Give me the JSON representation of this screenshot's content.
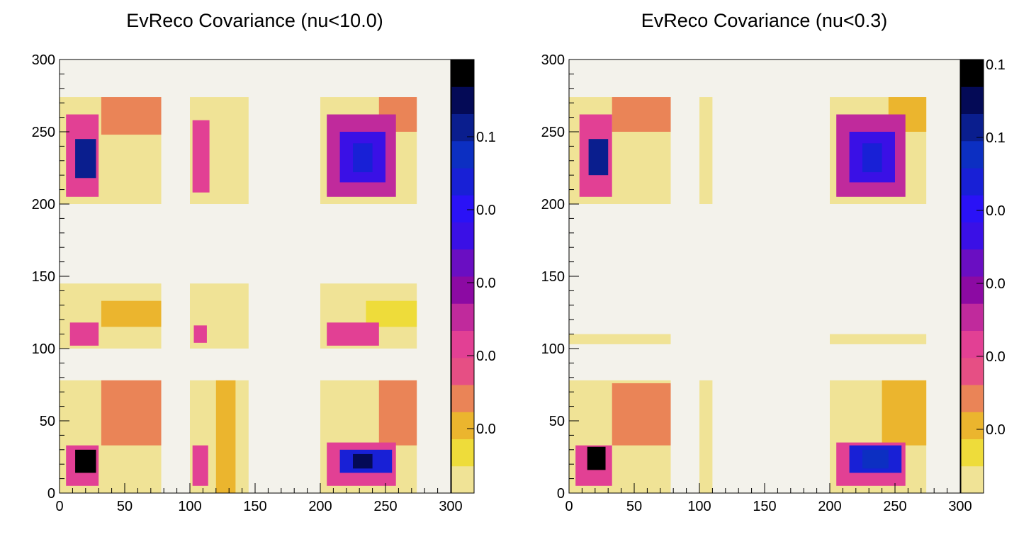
{
  "chart_data": [
    {
      "type": "heatmap",
      "title": "EvReco Covariance (nu<10.0)",
      "xlim": [
        0,
        300
      ],
      "ylim": [
        0,
        300
      ],
      "x_ticks": [
        "0",
        "50",
        "100",
        "150",
        "200",
        "250",
        "300"
      ],
      "y_ticks": [
        "0",
        "50",
        "100",
        "150",
        "200",
        "250",
        "300"
      ],
      "colorbar_labels": [
        "0.0",
        "0.0",
        "0.0",
        "0.0",
        "0.1"
      ],
      "background_color": "#f3f2eb",
      "regions": [
        {
          "x": [
            0,
            78
          ],
          "y": [
            0,
            78
          ],
          "level": 0.01
        },
        {
          "x": [
            0,
            78
          ],
          "y": [
            100,
            145
          ],
          "level": 0.01
        },
        {
          "x": [
            0,
            78
          ],
          "y": [
            200,
            274
          ],
          "level": 0.01
        },
        {
          "x": [
            100,
            145
          ],
          "y": [
            0,
            78
          ],
          "level": 0.01
        },
        {
          "x": [
            100,
            145
          ],
          "y": [
            100,
            145
          ],
          "level": 0.01
        },
        {
          "x": [
            100,
            145
          ],
          "y": [
            200,
            274
          ],
          "level": 0.01
        },
        {
          "x": [
            200,
            274
          ],
          "y": [
            0,
            78
          ],
          "level": 0.01
        },
        {
          "x": [
            200,
            274
          ],
          "y": [
            100,
            145
          ],
          "level": 0.01
        },
        {
          "x": [
            200,
            274
          ],
          "y": [
            200,
            274
          ],
          "level": 0.01
        },
        {
          "x": [
            32,
            78
          ],
          "y": [
            33,
            78
          ],
          "level": 0.2
        },
        {
          "x": [
            32,
            78
          ],
          "y": [
            115,
            133
          ],
          "level": 0.12
        },
        {
          "x": [
            32,
            78
          ],
          "y": [
            248,
            274
          ],
          "level": 0.2
        },
        {
          "x": [
            120,
            135
          ],
          "y": [
            0,
            78
          ],
          "level": 0.12
        },
        {
          "x": [
            245,
            274
          ],
          "y": [
            33,
            78
          ],
          "level": 0.2
        },
        {
          "x": [
            235,
            274
          ],
          "y": [
            115,
            133
          ],
          "level": 0.08
        },
        {
          "x": [
            245,
            274
          ],
          "y": [
            250,
            274
          ],
          "level": 0.2
        },
        {
          "x": [
            5,
            30
          ],
          "y": [
            5,
            33
          ],
          "level": 0.35
        },
        {
          "x": [
            12,
            28
          ],
          "y": [
            14,
            30
          ],
          "level": 1.0
        },
        {
          "x": [
            8,
            30
          ],
          "y": [
            102,
            118
          ],
          "level": 0.35
        },
        {
          "x": [
            5,
            30
          ],
          "y": [
            205,
            262
          ],
          "level": 0.35
        },
        {
          "x": [
            12,
            28
          ],
          "y": [
            218,
            245
          ],
          "level": 0.85
        },
        {
          "x": [
            102,
            114
          ],
          "y": [
            5,
            33
          ],
          "level": 0.35
        },
        {
          "x": [
            103,
            113
          ],
          "y": [
            104,
            116
          ],
          "level": 0.35
        },
        {
          "x": [
            102,
            115
          ],
          "y": [
            208,
            258
          ],
          "level": 0.35
        },
        {
          "x": [
            205,
            258
          ],
          "y": [
            5,
            35
          ],
          "level": 0.35
        },
        {
          "x": [
            215,
            255
          ],
          "y": [
            14,
            30
          ],
          "level": 0.75
        },
        {
          "x": [
            225,
            240
          ],
          "y": [
            17,
            27
          ],
          "level": 0.9
        },
        {
          "x": [
            205,
            245
          ],
          "y": [
            102,
            118
          ],
          "level": 0.35
        },
        {
          "x": [
            205,
            258
          ],
          "y": [
            205,
            262
          ],
          "level": 0.4
        },
        {
          "x": [
            215,
            250
          ],
          "y": [
            215,
            250
          ],
          "level": 0.6
        },
        {
          "x": [
            225,
            240
          ],
          "y": [
            222,
            242
          ],
          "level": 0.75
        }
      ]
    },
    {
      "type": "heatmap",
      "title": "EvReco Covariance (nu<0.3)",
      "xlim": [
        0,
        300
      ],
      "ylim": [
        0,
        300
      ],
      "x_ticks": [
        "0",
        "50",
        "100",
        "150",
        "200",
        "250",
        "300"
      ],
      "y_ticks": [
        "0",
        "50",
        "100",
        "150",
        "200",
        "250",
        "300"
      ],
      "colorbar_labels": [
        "0.0",
        "0.0",
        "0.0",
        "0.0",
        "0.1",
        "0.1"
      ],
      "background_color": "#f3f2eb",
      "regions": [
        {
          "x": [
            0,
            78
          ],
          "y": [
            0,
            78
          ],
          "level": 0.01
        },
        {
          "x": [
            0,
            78
          ],
          "y": [
            200,
            274
          ],
          "level": 0.01
        },
        {
          "x": [
            200,
            274
          ],
          "y": [
            0,
            78
          ],
          "level": 0.01
        },
        {
          "x": [
            200,
            274
          ],
          "y": [
            200,
            274
          ],
          "level": 0.01
        },
        {
          "x": [
            0,
            78
          ],
          "y": [
            103,
            110
          ],
          "level": 0.01
        },
        {
          "x": [
            200,
            274
          ],
          "y": [
            103,
            110
          ],
          "level": 0.01
        },
        {
          "x": [
            100,
            110
          ],
          "y": [
            0,
            78
          ],
          "level": 0.01
        },
        {
          "x": [
            100,
            110
          ],
          "y": [
            200,
            274
          ],
          "level": 0.01
        },
        {
          "x": [
            33,
            78
          ],
          "y": [
            33,
            76
          ],
          "level": 0.2
        },
        {
          "x": [
            33,
            78
          ],
          "y": [
            250,
            274
          ],
          "level": 0.2
        },
        {
          "x": [
            240,
            274
          ],
          "y": [
            33,
            78
          ],
          "level": 0.12
        },
        {
          "x": [
            245,
            274
          ],
          "y": [
            250,
            274
          ],
          "level": 0.12
        },
        {
          "x": [
            5,
            33
          ],
          "y": [
            5,
            33
          ],
          "level": 0.35
        },
        {
          "x": [
            14,
            28
          ],
          "y": [
            16,
            32
          ],
          "level": 1.0
        },
        {
          "x": [
            8,
            33
          ],
          "y": [
            205,
            262
          ],
          "level": 0.35
        },
        {
          "x": [
            15,
            30
          ],
          "y": [
            220,
            245
          ],
          "level": 0.85
        },
        {
          "x": [
            205,
            258
          ],
          "y": [
            5,
            35
          ],
          "level": 0.35
        },
        {
          "x": [
            215,
            255
          ],
          "y": [
            14,
            33
          ],
          "level": 0.7
        },
        {
          "x": [
            225,
            245
          ],
          "y": [
            17,
            30
          ],
          "level": 0.8
        },
        {
          "x": [
            205,
            258
          ],
          "y": [
            205,
            262
          ],
          "level": 0.4
        },
        {
          "x": [
            215,
            250
          ],
          "y": [
            215,
            250
          ],
          "level": 0.6
        },
        {
          "x": [
            225,
            240
          ],
          "y": [
            222,
            242
          ],
          "level": 0.75
        }
      ]
    }
  ],
  "palette": [
    "#f0e396",
    "#eedc3a",
    "#ebb52e",
    "#ea8457",
    "#e64f84",
    "#e24094",
    "#c02a9c",
    "#8c0aa3",
    "#6a0ec2",
    "#3a10e6",
    "#2a12f6",
    "#1820d6",
    "#0c2fc2",
    "#0a1e8e",
    "#040a56",
    "#000000"
  ]
}
